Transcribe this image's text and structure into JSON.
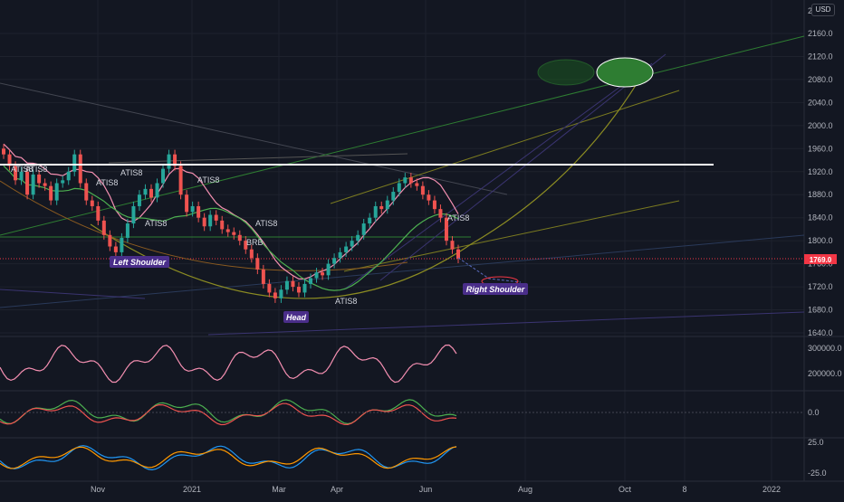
{
  "currency_label": "USD",
  "price_label": "1769.0",
  "x_ticks": [
    "Nov",
    "2021",
    "Mar",
    "Apr",
    "Jun",
    "Aug",
    "Oct",
    "8",
    "2022"
  ],
  "annotations": {
    "left_shoulder": "Left Shoulder",
    "head": "Head",
    "right_shoulder": "Right Shoulder",
    "atis_labels": [
      "ATIS8",
      "ATIS8",
      "ATIS8",
      "ATIS8",
      "ATIS8",
      "ATIS8",
      "ATIS8",
      "ATIS8",
      "BRB"
    ]
  },
  "colors": {
    "background": "#131722",
    "up_candle": "#26a69a",
    "down_candle": "#ef5350",
    "neckline": "#ffffff",
    "price_tag": "#f23645",
    "callout_bg": "#4a2e8a",
    "target_ellipse": "#2e7d32"
  },
  "chart_data": [
    {
      "type": "candlestick",
      "title": "",
      "ylim": [
        1640,
        2200
      ],
      "y_ticks": [
        1640,
        1680,
        1720,
        1760,
        1800,
        1840,
        1880,
        1920,
        1960,
        2000,
        2040,
        2080,
        2120,
        2160
      ],
      "last_price": 1769.0,
      "neckline_level": 1933,
      "pattern": "head and shoulders",
      "close_series_approx": [
        1950,
        1930,
        1905,
        1920,
        1880,
        1915,
        1900,
        1895,
        1870,
        1900,
        1905,
        1920,
        1950,
        1900,
        1870,
        1860,
        1835,
        1810,
        1790,
        1780,
        1805,
        1830,
        1860,
        1880,
        1890,
        1875,
        1900,
        1925,
        1950,
        1930,
        1880,
        1850,
        1860,
        1840,
        1825,
        1845,
        1835,
        1820,
        1815,
        1810,
        1800,
        1785,
        1770,
        1750,
        1725,
        1710,
        1700,
        1715,
        1730,
        1720,
        1710,
        1725,
        1735,
        1745,
        1740,
        1760,
        1770,
        1780,
        1790,
        1800,
        1810,
        1830,
        1840,
        1860,
        1855,
        1870,
        1885,
        1900,
        1910,
        1900,
        1895,
        1880,
        1870,
        1855,
        1840,
        1800,
        1785,
        1769
      ]
    },
    {
      "type": "line",
      "title": "",
      "y_ticks": [
        200000.0,
        300000.0
      ]
    },
    {
      "type": "line",
      "title": "",
      "y_ticks": [
        0.0
      ]
    },
    {
      "type": "line",
      "title": "",
      "y_ticks": [
        25.0,
        -25.0
      ]
    }
  ]
}
